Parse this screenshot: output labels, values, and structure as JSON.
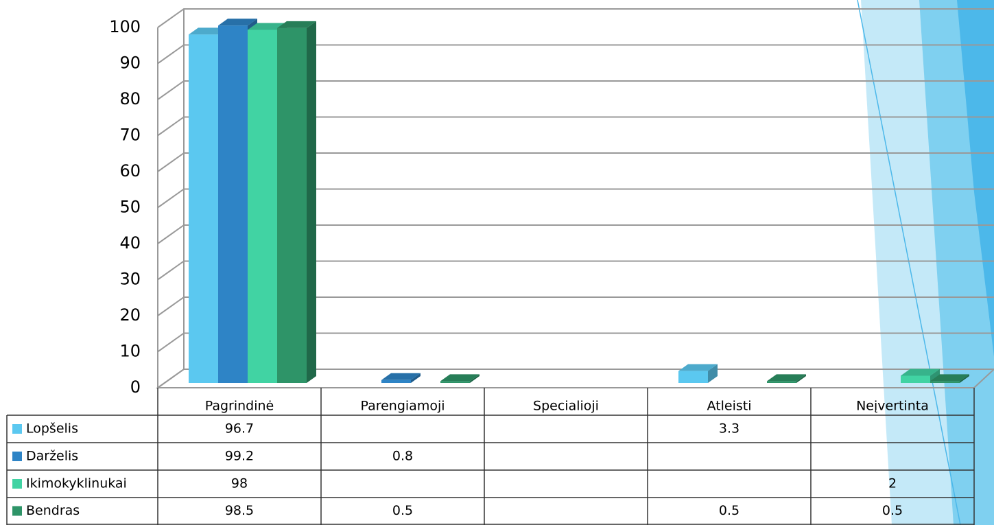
{
  "chart_data": {
    "type": "bar3d",
    "categories": [
      "Pagrindinė",
      "Parengiamoji",
      "Specialioji",
      "Atleisti",
      "Neįvertinta"
    ],
    "series": [
      {
        "name": "Lopšelis",
        "color": "#5bc8f0",
        "values": [
          96.7,
          null,
          null,
          3.3,
          null
        ]
      },
      {
        "name": "Darželis",
        "color": "#2e84c6",
        "values": [
          99.2,
          0.8,
          null,
          null,
          null
        ]
      },
      {
        "name": "Ikimokyklinukai",
        "color": "#41d3a3",
        "values": [
          98,
          null,
          null,
          null,
          2
        ]
      },
      {
        "name": "Bendras",
        "color": "#2e9468",
        "values": [
          98.5,
          0.5,
          null,
          0.5,
          0.5
        ]
      }
    ],
    "ylim": [
      0,
      100
    ],
    "yticks": [
      0,
      10,
      20,
      30,
      40,
      50,
      60,
      70,
      80,
      90,
      100
    ],
    "grid": true
  }
}
